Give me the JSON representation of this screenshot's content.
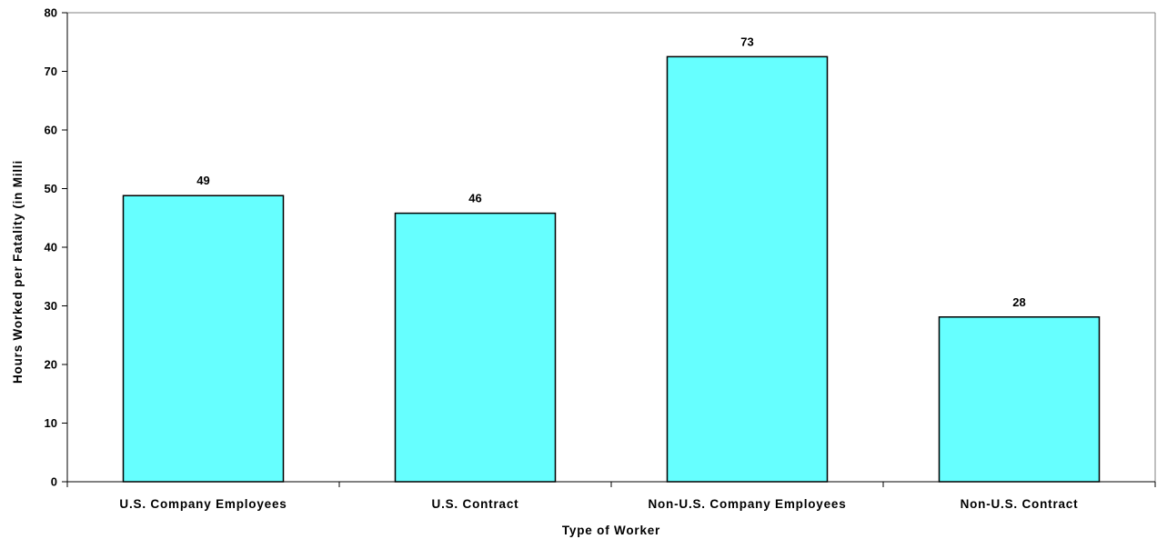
{
  "chart_data": {
    "type": "bar",
    "title": "",
    "xlabel": "Type of Worker",
    "ylabel": "Hours Worked per Fatality (in Milli",
    "categories": [
      "U.S. Company Employees",
      "U.S. Contract",
      "Non-U.S. Company Employees",
      "Non-U.S. Contract"
    ],
    "values": [
      48.8,
      45.8,
      72.5,
      28.1
    ],
    "data_labels": [
      "49",
      "46",
      "73",
      "28"
    ],
    "ylim": [
      0,
      80
    ],
    "yticks": [
      0,
      10,
      20,
      30,
      40,
      50,
      60,
      70,
      80
    ],
    "grid": false,
    "legend": "none",
    "colors": {
      "bar_fill": "#66FFFF",
      "bar_stroke": "#000000",
      "axis": "#000000",
      "frame": "#808080"
    }
  }
}
